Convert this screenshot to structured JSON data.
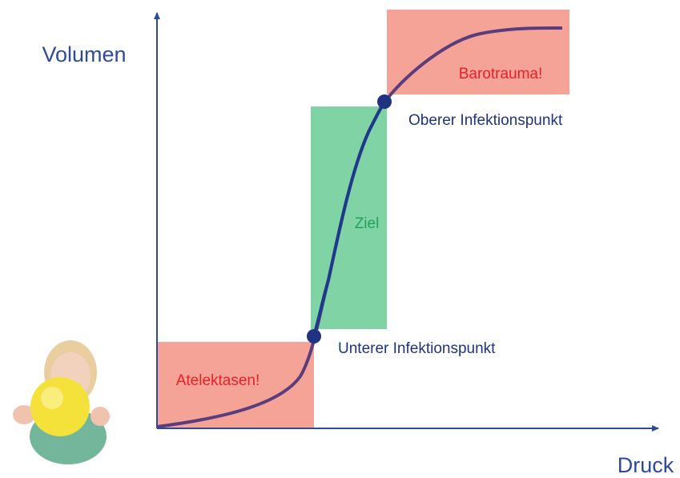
{
  "axes": {
    "y_label": "Volumen",
    "x_label": "Druck"
  },
  "zones": [
    {
      "label": "Atelektasen!"
    },
    {
      "label": "Ziel"
    },
    {
      "label": "Barotrauma!"
    }
  ],
  "points": [
    {
      "label": "Oberer Infektionspunkt"
    },
    {
      "label": "Unterer Infektionspunkt"
    }
  ]
}
